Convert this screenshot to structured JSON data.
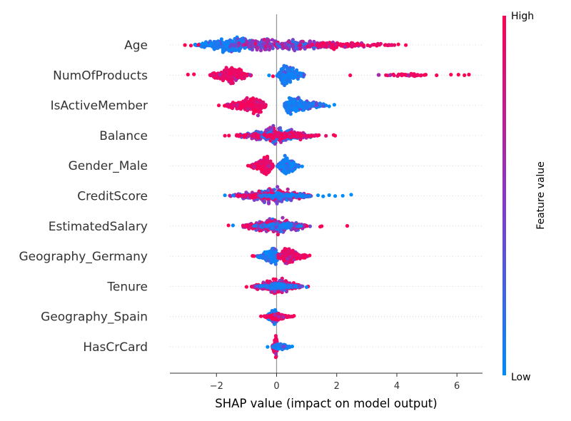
{
  "chart_data": {
    "type": "scatter",
    "subtype": "shap-beeswarm",
    "xlabel": "SHAP value (impact on model output)",
    "xlim": [
      -3.55,
      6.85
    ],
    "xticks": [
      -2,
      0,
      2,
      4,
      6
    ],
    "xtick_labels": [
      "−2",
      "0",
      "2",
      "4",
      "6"
    ],
    "colorbar": {
      "label": "Feature value",
      "high": "High",
      "low": "Low"
    },
    "colors": {
      "low": "#008bfb",
      "mid": "#8a36c6",
      "high": "#ff0052",
      "axis": "#333333",
      "zero_line": "#999999",
      "row_grid": "#cccccc"
    },
    "features": [
      {
        "name": "Age",
        "clusters": [
          {
            "from": -2.8,
            "to": -0.4,
            "peak": -1.3,
            "h": 0.32,
            "n": 260,
            "color": "low"
          },
          {
            "from": -1.6,
            "to": 0.5,
            "peak": -0.6,
            "h": 0.28,
            "n": 140,
            "color": "mid"
          },
          {
            "from": -0.2,
            "to": 2.2,
            "peak": 0.5,
            "h": 0.22,
            "n": 160,
            "color": "mid"
          },
          {
            "from": 1.0,
            "to": 4.3,
            "peak": 1.8,
            "h": 0.14,
            "n": 110,
            "color": "high"
          }
        ],
        "outliers": [
          [
            -3.05,
            "high"
          ],
          [
            -2.85,
            "high"
          ],
          [
            -2.6,
            "high"
          ],
          [
            -2.35,
            "low"
          ],
          [
            4.05,
            "high"
          ],
          [
            4.3,
            "high"
          ]
        ]
      },
      {
        "name": "NumOfProducts",
        "clusters": [
          {
            "from": -2.3,
            "to": -0.8,
            "peak": -1.5,
            "h": 0.3,
            "n": 260,
            "color": "high"
          },
          {
            "from": 0.0,
            "to": 1.0,
            "peak": 0.25,
            "h": 0.34,
            "n": 240,
            "color": "low"
          },
          {
            "from": 3.1,
            "to": 5.6,
            "peak": 4.3,
            "h": 0.05,
            "n": 45,
            "color": "high"
          }
        ],
        "outliers": [
          [
            -2.75,
            "high"
          ],
          [
            -2.95,
            "high"
          ],
          [
            -0.25,
            "low"
          ],
          [
            -0.12,
            "high"
          ],
          [
            2.45,
            "high"
          ],
          [
            5.8,
            "high"
          ],
          [
            6.05,
            "high"
          ],
          [
            6.25,
            "high"
          ],
          [
            6.4,
            "high"
          ]
        ]
      },
      {
        "name": "IsActiveMember",
        "clusters": [
          {
            "from": -1.8,
            "to": -0.3,
            "peak": -0.55,
            "h": 0.32,
            "n": 250,
            "color": "high"
          },
          {
            "from": 0.2,
            "to": 1.8,
            "peak": 0.4,
            "h": 0.32,
            "n": 230,
            "color": "low"
          }
        ],
        "outliers": [
          [
            -1.92,
            "high"
          ],
          [
            1.92,
            "low"
          ],
          [
            1.75,
            "low"
          ]
        ]
      },
      {
        "name": "Balance",
        "clusters": [
          {
            "from": -1.5,
            "to": 1.5,
            "peak": -0.1,
            "h": 0.3,
            "n": 220,
            "color": "mid"
          },
          {
            "from": -1.2,
            "to": 1.0,
            "peak": 0.3,
            "h": 0.22,
            "n": 130,
            "color": "low"
          },
          {
            "from": -1.6,
            "to": 1.8,
            "peak": 0.0,
            "h": 0.16,
            "n": 120,
            "color": "high"
          }
        ],
        "outliers": [
          [
            -1.72,
            "high"
          ],
          [
            1.9,
            "high"
          ],
          [
            1.95,
            "high"
          ]
        ]
      },
      {
        "name": "Gender_Male",
        "clusters": [
          {
            "from": -0.9,
            "to": -0.1,
            "peak": -0.3,
            "h": 0.32,
            "n": 240,
            "color": "high"
          },
          {
            "from": 0.0,
            "to": 0.8,
            "peak": 0.3,
            "h": 0.3,
            "n": 220,
            "color": "low"
          }
        ],
        "outliers": [
          [
            -0.95,
            "high"
          ],
          [
            0.85,
            "low"
          ]
        ]
      },
      {
        "name": "CreditScore",
        "clusters": [
          {
            "from": -1.7,
            "to": 1.3,
            "peak": -0.05,
            "h": 0.3,
            "n": 260,
            "color": "mid"
          },
          {
            "from": -1.5,
            "to": 1.3,
            "peak": 0.1,
            "h": 0.16,
            "n": 150,
            "color": "high"
          },
          {
            "from": -0.7,
            "to": 1.2,
            "peak": 0.3,
            "h": 0.14,
            "n": 90,
            "color": "low"
          }
        ],
        "outliers": [
          [
            -1.72,
            "low"
          ],
          [
            1.38,
            "low"
          ],
          [
            1.55,
            "low"
          ],
          [
            1.75,
            "low"
          ],
          [
            1.95,
            "low"
          ],
          [
            2.2,
            "low"
          ],
          [
            2.48,
            "low"
          ]
        ]
      },
      {
        "name": "EstimatedSalary",
        "clusters": [
          {
            "from": -1.3,
            "to": 1.2,
            "peak": -0.05,
            "h": 0.3,
            "n": 260,
            "color": "mid"
          },
          {
            "from": -1.2,
            "to": 1.1,
            "peak": -0.1,
            "h": 0.16,
            "n": 130,
            "color": "high"
          },
          {
            "from": -0.8,
            "to": 0.9,
            "peak": 0.1,
            "h": 0.14,
            "n": 100,
            "color": "low"
          }
        ],
        "outliers": [
          [
            -1.6,
            "high"
          ],
          [
            -1.45,
            "low"
          ],
          [
            1.45,
            "high"
          ],
          [
            1.5,
            "high"
          ],
          [
            2.35,
            "high"
          ]
        ]
      },
      {
        "name": "Geography_Germany",
        "clusters": [
          {
            "from": -0.7,
            "to": 0.1,
            "peak": -0.05,
            "h": 0.3,
            "n": 230,
            "color": "low"
          },
          {
            "from": 0.0,
            "to": 1.1,
            "peak": 0.3,
            "h": 0.3,
            "n": 220,
            "color": "high"
          }
        ],
        "outliers": [
          [
            -0.8,
            "high"
          ],
          [
            -0.75,
            "high"
          ],
          [
            1.1,
            "high"
          ]
        ]
      },
      {
        "name": "Tenure",
        "clusters": [
          {
            "from": -0.9,
            "to": 0.9,
            "peak": -0.05,
            "h": 0.3,
            "n": 240,
            "color": "high"
          },
          {
            "from": -0.7,
            "to": 0.8,
            "peak": 0.05,
            "h": 0.18,
            "n": 140,
            "color": "mid"
          },
          {
            "from": -0.6,
            "to": 0.9,
            "peak": 0.0,
            "h": 0.12,
            "n": 80,
            "color": "low"
          }
        ],
        "outliers": [
          [
            -1.0,
            "high"
          ],
          [
            1.05,
            "high"
          ],
          [
            1.0,
            "low"
          ]
        ]
      },
      {
        "name": "Geography_Spain",
        "clusters": [
          {
            "from": -0.4,
            "to": 0.1,
            "peak": -0.02,
            "h": 0.28,
            "n": 200,
            "color": "low"
          },
          {
            "from": -0.5,
            "to": 0.55,
            "peak": 0.05,
            "h": 0.12,
            "n": 130,
            "color": "high"
          }
        ],
        "outliers": [
          [
            -0.52,
            "high"
          ],
          [
            0.58,
            "high"
          ]
        ]
      },
      {
        "name": "HasCrCard",
        "clusters": [
          {
            "from": -0.15,
            "to": 0.05,
            "peak": -0.02,
            "h": 0.36,
            "n": 200,
            "color": "high"
          },
          {
            "from": -0.2,
            "to": 0.5,
            "peak": 0.1,
            "h": 0.12,
            "n": 120,
            "color": "low"
          }
        ],
        "outliers": [
          [
            -0.3,
            "low"
          ],
          [
            0.52,
            "low"
          ]
        ]
      }
    ]
  }
}
